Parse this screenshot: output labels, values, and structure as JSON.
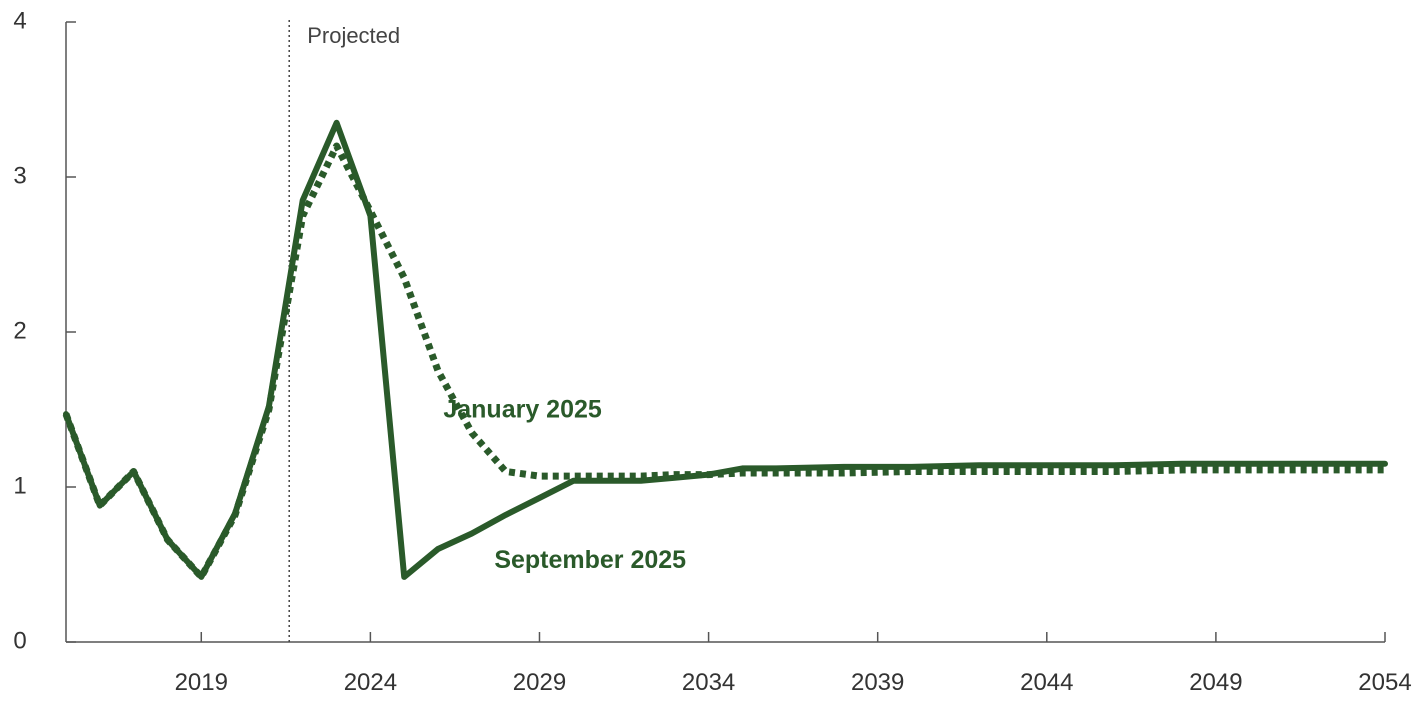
{
  "chart_data": {
    "type": "line",
    "title": "",
    "xlabel": "",
    "ylabel": "",
    "xlim": [
      2015,
      2054
    ],
    "ylim": [
      0,
      4
    ],
    "x_ticks": [
      2019,
      2024,
      2029,
      2034,
      2039,
      2044,
      2049,
      2054
    ],
    "y_ticks": [
      0,
      1,
      2,
      3,
      4
    ],
    "grid": false,
    "projection_start": 2021.6,
    "projection_label": "Projected",
    "colors": {
      "series": "#2a5a2a",
      "axis": "#555555",
      "text": "#333333"
    },
    "series": [
      {
        "name": "January 2025",
        "style": "dotted",
        "points": [
          [
            2015,
            1.47
          ],
          [
            2016,
            0.88
          ],
          [
            2017,
            1.1
          ],
          [
            2018,
            0.66
          ],
          [
            2019,
            0.42
          ],
          [
            2020,
            0.82
          ],
          [
            2021,
            1.5
          ],
          [
            2022,
            2.75
          ],
          [
            2023,
            3.2
          ],
          [
            2024,
            2.78
          ],
          [
            2025,
            2.35
          ],
          [
            2026,
            1.75
          ],
          [
            2027,
            1.35
          ],
          [
            2028,
            1.1
          ],
          [
            2029,
            1.07
          ],
          [
            2030,
            1.07
          ],
          [
            2031,
            1.07
          ],
          [
            2032,
            1.07
          ],
          [
            2033,
            1.08
          ],
          [
            2034,
            1.08
          ],
          [
            2035,
            1.09
          ],
          [
            2036,
            1.09
          ],
          [
            2038,
            1.09
          ],
          [
            2040,
            1.1
          ],
          [
            2042,
            1.1
          ],
          [
            2044,
            1.1
          ],
          [
            2046,
            1.1
          ],
          [
            2048,
            1.11
          ],
          [
            2050,
            1.11
          ],
          [
            2052,
            1.11
          ],
          [
            2054,
            1.11
          ]
        ]
      },
      {
        "name": "September 2025",
        "style": "solid",
        "points": [
          [
            2015,
            1.47
          ],
          [
            2016,
            0.88
          ],
          [
            2017,
            1.1
          ],
          [
            2018,
            0.66
          ],
          [
            2019,
            0.42
          ],
          [
            2020,
            0.83
          ],
          [
            2021,
            1.52
          ],
          [
            2022,
            2.85
          ],
          [
            2023,
            3.35
          ],
          [
            2024,
            2.75
          ],
          [
            2025,
            0.42
          ],
          [
            2026,
            0.6
          ],
          [
            2027,
            0.7
          ],
          [
            2028,
            0.82
          ],
          [
            2029,
            0.93
          ],
          [
            2030,
            1.04
          ],
          [
            2031,
            1.04
          ],
          [
            2032,
            1.04
          ],
          [
            2033,
            1.06
          ],
          [
            2034,
            1.08
          ],
          [
            2035,
            1.12
          ],
          [
            2036,
            1.12
          ],
          [
            2038,
            1.13
          ],
          [
            2040,
            1.13
          ],
          [
            2042,
            1.14
          ],
          [
            2044,
            1.14
          ],
          [
            2046,
            1.14
          ],
          [
            2048,
            1.15
          ],
          [
            2050,
            1.15
          ],
          [
            2052,
            1.15
          ],
          [
            2054,
            1.15
          ]
        ]
      }
    ],
    "annotations": [
      {
        "text": "January 2025",
        "series": 0,
        "x": 2028.5,
        "y": 1.49
      },
      {
        "text": "September 2025",
        "series": 1,
        "x": 2030.5,
        "y": 0.52
      }
    ]
  }
}
